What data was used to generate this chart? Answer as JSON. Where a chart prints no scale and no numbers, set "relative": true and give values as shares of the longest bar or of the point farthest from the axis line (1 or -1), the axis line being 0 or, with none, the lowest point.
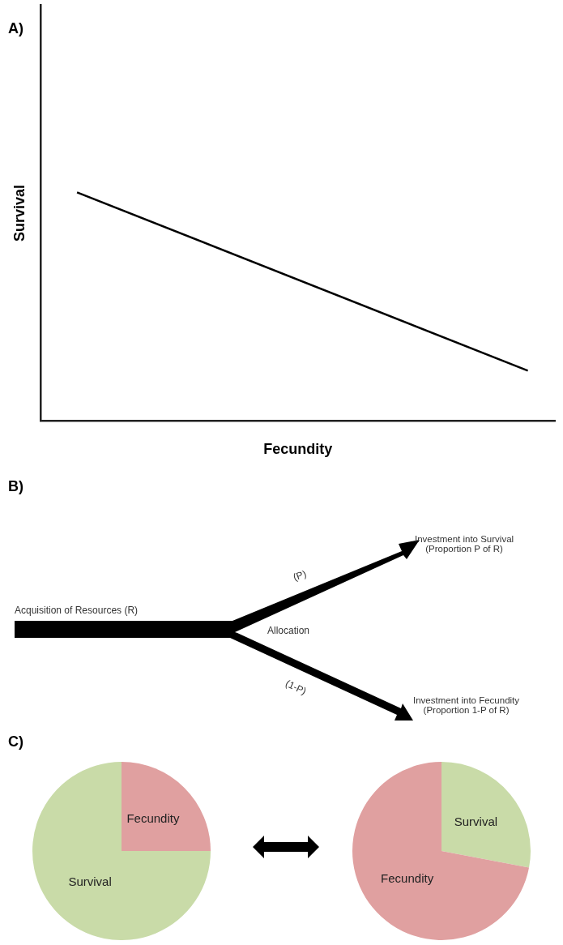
{
  "chart_data": [
    {
      "type": "line",
      "title": "A)",
      "xlabel": "Fecundity",
      "ylabel": "Survival",
      "categories": [
        null,
        null
      ],
      "relative": true,
      "tick_labels": false,
      "marker": "none",
      "line_style": "solid",
      "series": [
        {
          "color": "#000000",
          "values": [
            1,
            0.22
          ]
        }
      ]
    },
    {
      "type": "other",
      "title": "B)",
      "annotations": [
        "Acquisition of Resources (R)",
        "(P)",
        "Allocation",
        "(1-P)",
        "Investment into Survival\n(Proportion P of R)",
        "Investment into Fecundity\n(Proportion 1-P of R)"
      ]
    },
    {
      "type": "pie",
      "title": "C)",
      "categories": [
        "Fecundity",
        "Survival"
      ],
      "values": [
        25,
        75
      ],
      "colors": [
        "#e0a0a0",
        "#c9dba8"
      ]
    },
    {
      "type": "pie",
      "categories": [
        "Survival",
        "Fecundity"
      ],
      "values": [
        28,
        72
      ],
      "colors": [
        "#c9dba8",
        "#e0a0a0"
      ]
    }
  ]
}
